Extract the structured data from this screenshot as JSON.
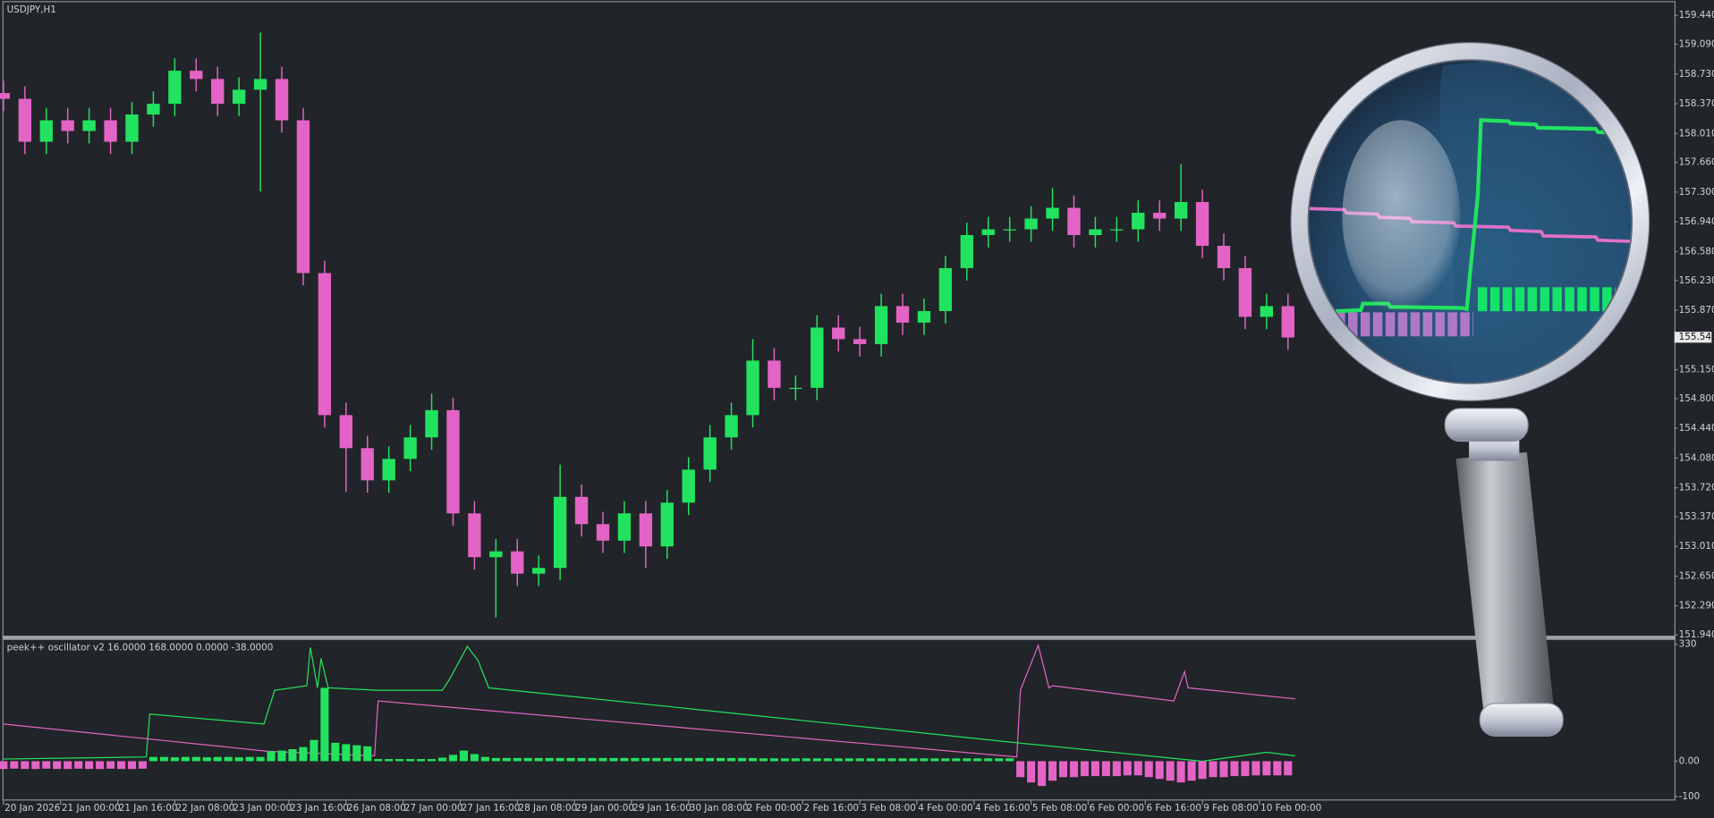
{
  "chart_data": [
    {
      "type": "candlestick",
      "title": "USDJPY,H1",
      "up_color": "#22e35f",
      "down_color": "#e364c6",
      "x": [
        0,
        6,
        12,
        18,
        24,
        30,
        36,
        42,
        48,
        54,
        60,
        66,
        72,
        78,
        84,
        90,
        96,
        102,
        108,
        114,
        120,
        126,
        132,
        138,
        144,
        150,
        156,
        162,
        168,
        174,
        180,
        186,
        192,
        198,
        204,
        210,
        216,
        222,
        228,
        234,
        240,
        246,
        252,
        258,
        264,
        270,
        276,
        282,
        288,
        294,
        300,
        306,
        312,
        318,
        324,
        330,
        336,
        342,
        348,
        354,
        360
      ],
      "open": [
        158.5,
        158.43,
        157.91,
        158.17,
        158.04,
        158.17,
        157.91,
        158.24,
        158.37,
        158.77,
        158.67,
        158.37,
        158.54,
        158.67,
        158.17,
        156.32,
        154.6,
        154.2,
        153.81,
        154.07,
        154.33,
        154.66,
        153.41,
        152.88,
        152.95,
        152.68,
        152.75,
        153.61,
        153.28,
        153.08,
        153.41,
        153.01,
        153.54,
        153.94,
        154.33,
        154.6,
        155.26,
        154.93,
        154.93,
        155.66,
        155.52,
        155.46,
        155.92,
        155.72,
        155.86,
        156.38,
        156.78,
        156.85,
        156.85,
        156.98,
        157.11,
        156.78,
        156.85,
        156.85,
        157.05,
        156.98,
        157.18,
        156.65,
        156.38,
        155.79,
        155.92
      ],
      "high": [
        158.65,
        158.58,
        158.32,
        158.32,
        158.32,
        158.32,
        158.39,
        158.52,
        158.92,
        158.92,
        158.82,
        158.69,
        159.23,
        158.82,
        158.32,
        156.47,
        154.75,
        154.35,
        154.22,
        154.48,
        154.86,
        154.81,
        153.56,
        153.1,
        153.1,
        152.9,
        154.0,
        153.76,
        153.43,
        153.56,
        153.56,
        153.69,
        154.09,
        154.48,
        154.75,
        155.52,
        155.41,
        155.08,
        155.81,
        155.81,
        155.67,
        156.07,
        156.07,
        156.01,
        156.53,
        156.93,
        157.0,
        157.0,
        157.13,
        157.35,
        157.26,
        157.0,
        157.0,
        157.2,
        157.2,
        157.64,
        157.33,
        156.8,
        156.53,
        156.07,
        156.07
      ],
      "low": [
        158.28,
        157.76,
        157.76,
        157.89,
        157.89,
        157.76,
        157.76,
        158.09,
        158.22,
        158.52,
        158.22,
        158.22,
        157.31,
        158.02,
        156.17,
        154.45,
        153.67,
        153.66,
        153.66,
        153.92,
        154.18,
        153.26,
        152.73,
        152.15,
        152.53,
        152.53,
        152.6,
        153.13,
        152.93,
        152.93,
        152.75,
        152.86,
        153.39,
        153.79,
        154.18,
        154.45,
        154.78,
        154.78,
        154.78,
        155.37,
        155.31,
        155.31,
        155.57,
        155.57,
        155.71,
        156.23,
        156.63,
        156.7,
        156.7,
        156.83,
        156.63,
        156.63,
        156.7,
        156.7,
        156.83,
        156.83,
        156.5,
        156.23,
        155.64,
        155.64,
        155.39
      ],
      "close": [
        158.43,
        157.91,
        158.17,
        158.04,
        158.17,
        157.91,
        158.24,
        158.37,
        158.77,
        158.67,
        158.37,
        158.54,
        158.67,
        158.17,
        156.32,
        154.6,
        154.2,
        153.81,
        154.07,
        154.33,
        154.66,
        153.41,
        152.88,
        152.95,
        152.68,
        152.75,
        153.61,
        153.28,
        153.08,
        153.41,
        153.01,
        153.54,
        153.94,
        154.33,
        154.6,
        155.26,
        154.93,
        154.93,
        155.66,
        155.52,
        155.46,
        155.92,
        155.72,
        155.86,
        156.38,
        156.78,
        156.85,
        156.85,
        156.98,
        157.11,
        156.78,
        156.85,
        156.85,
        157.05,
        156.98,
        157.18,
        156.65,
        156.38,
        155.79,
        155.92,
        155.54
      ],
      "xlim": [
        0,
        468
      ],
      "xticks": [
        {
          "value": 0,
          "label": "20 Jan 2026"
        },
        {
          "value": 16,
          "label": "21 Jan 00:00"
        },
        {
          "value": 32,
          "label": "21 Jan 16:00"
        },
        {
          "value": 48,
          "label": "22 Jan 08:00"
        },
        {
          "value": 64,
          "label": "23 Jan 00:00"
        },
        {
          "value": 80,
          "label": "23 Jan 16:00"
        },
        {
          "value": 96,
          "label": "26 Jan 08:00"
        },
        {
          "value": 112,
          "label": "27 Jan 00:00"
        },
        {
          "value": 128,
          "label": "27 Jan 16:00"
        },
        {
          "value": 144,
          "label": "28 Jan 08:00"
        },
        {
          "value": 160,
          "label": "29 Jan 00:00"
        },
        {
          "value": 176,
          "label": "29 Jan 16:00"
        },
        {
          "value": 192,
          "label": "30 Jan 08:00"
        },
        {
          "value": 208,
          "label": "2 Feb 00:00"
        },
        {
          "value": 224,
          "label": "2 Feb 16:00"
        },
        {
          "value": 240,
          "label": "3 Feb 08:00"
        },
        {
          "value": 256,
          "label": "4 Feb 00:00"
        },
        {
          "value": 272,
          "label": "4 Feb 16:00"
        },
        {
          "value": 288,
          "label": "5 Feb 08:00"
        },
        {
          "value": 304,
          "label": "6 Feb 00:00"
        },
        {
          "value": 320,
          "label": "6 Feb 16:00"
        },
        {
          "value": 336,
          "label": "9 Feb 08:00"
        },
        {
          "value": 352,
          "label": "10 Feb 00:00"
        }
      ],
      "ylim": [
        151.93,
        159.6
      ],
      "yticks": [
        {
          "value": 159.44,
          "label": "159.440"
        },
        {
          "value": 159.09,
          "label": "159.090"
        },
        {
          "value": 158.73,
          "label": "158.730"
        },
        {
          "value": 158.37,
          "label": "158.370"
        },
        {
          "value": 158.01,
          "label": "158.010"
        },
        {
          "value": 157.66,
          "label": "157.660"
        },
        {
          "value": 157.3,
          "label": "157.300"
        },
        {
          "value": 156.94,
          "label": "156.940"
        },
        {
          "value": 156.58,
          "label": "156.580"
        },
        {
          "value": 156.23,
          "label": "156.230"
        },
        {
          "value": 155.87,
          "label": "155.870"
        },
        {
          "value": 155.15,
          "label": "155.150"
        },
        {
          "value": 154.8,
          "label": "154.800"
        },
        {
          "value": 154.44,
          "label": "154.440"
        },
        {
          "value": 154.08,
          "label": "154.080"
        },
        {
          "value": 153.72,
          "label": "153.720"
        },
        {
          "value": 153.37,
          "label": "153.370"
        },
        {
          "value": 153.01,
          "label": "153.010"
        },
        {
          "value": 152.65,
          "label": "152.650"
        },
        {
          "value": 152.29,
          "label": "152.290"
        },
        {
          "value": 151.94,
          "label": "151.940"
        }
      ],
      "last_price": {
        "value": 155.543,
        "label": "155.543"
      }
    },
    {
      "type": "combo",
      "title": "peek++ oscillator v2 16.0000 168.0000 0.0000 -38.0000",
      "xlim": [
        0,
        468
      ],
      "ylim": [
        -111,
        342
      ],
      "yticks": [
        330,
        {
          "value": 0,
          "label": "0.00"
        },
        -100
      ],
      "series": [
        {
          "type": "line",
          "color": "#22e35f",
          "x": [
            0,
            40,
            41,
            73,
            76,
            85,
            86,
            88,
            89,
            91,
            105,
            123,
            125,
            130,
            133,
            136,
            284,
            336,
            354,
            362
          ],
          "values": [
            6,
            12,
            133,
            105,
            200,
            213,
            321,
            207,
            290,
            207,
            200,
            200,
            231,
            324,
            284,
            207,
            52,
            0,
            25,
            15
          ]
        },
        {
          "type": "line",
          "color": "#e364c6",
          "x": [
            0,
            74,
            104,
            105,
            284,
            285,
            290,
            293,
            294,
            328,
            331,
            332,
            362
          ],
          "values": [
            105,
            28,
            15,
            170,
            12,
            200,
            327,
            207,
            213,
            170,
            253,
            207,
            176
          ]
        },
        {
          "type": "bar",
          "color": "#22e35f",
          "negative_color": "#e364c6",
          "x": [
            0,
            3,
            6,
            9,
            12,
            15,
            18,
            21,
            24,
            27,
            30,
            33,
            36,
            39,
            42,
            45,
            48,
            51,
            54,
            57,
            60,
            63,
            66,
            69,
            72,
            75,
            78,
            81,
            84,
            87,
            90,
            93,
            96,
            99,
            102,
            105,
            108,
            111,
            114,
            117,
            120,
            123,
            126,
            129,
            132,
            135,
            138,
            141,
            144,
            147,
            150,
            153,
            156,
            159,
            162,
            165,
            168,
            171,
            174,
            177,
            180,
            183,
            186,
            189,
            192,
            195,
            198,
            201,
            204,
            207,
            210,
            213,
            216,
            219,
            222,
            225,
            228,
            231,
            234,
            237,
            240,
            243,
            246,
            249,
            252,
            255,
            258,
            261,
            264,
            267,
            270,
            273,
            276,
            279,
            282,
            285,
            288,
            291,
            294,
            297,
            300,
            303,
            306,
            309,
            312,
            315,
            318,
            321,
            324,
            327,
            330,
            333,
            336,
            339,
            342,
            345,
            348,
            351,
            354,
            357,
            360
          ],
          "values": [
            -22,
            -21,
            -22,
            -22,
            -21,
            -22,
            -22,
            -21,
            -22,
            -22,
            -21,
            -22,
            -22,
            -21,
            12,
            12,
            11,
            12,
            12,
            11,
            12,
            12,
            11,
            12,
            12,
            28,
            30,
            34,
            40,
            60,
            207,
            52,
            48,
            45,
            42,
            6,
            6,
            6,
            6,
            6,
            6,
            10,
            18,
            30,
            20,
            12,
            9,
            9,
            9,
            9,
            9,
            9,
            9,
            9,
            9,
            9,
            9,
            9,
            9,
            9,
            9,
            9,
            9,
            9,
            9,
            9,
            9,
            9,
            9,
            9,
            9,
            8,
            8,
            8,
            8,
            8,
            8,
            8,
            8,
            8,
            8,
            8,
            8,
            8,
            8,
            8,
            8,
            8,
            8,
            8,
            8,
            8,
            8,
            8,
            8,
            -45,
            -60,
            -70,
            -55,
            -45,
            -45,
            -42,
            -42,
            -42,
            -42,
            -40,
            -40,
            -45,
            -50,
            -55,
            -60,
            -55,
            -50,
            -45,
            -45,
            -42,
            -42,
            -40,
            -40,
            -40,
            -40
          ]
        }
      ]
    }
  ]
}
